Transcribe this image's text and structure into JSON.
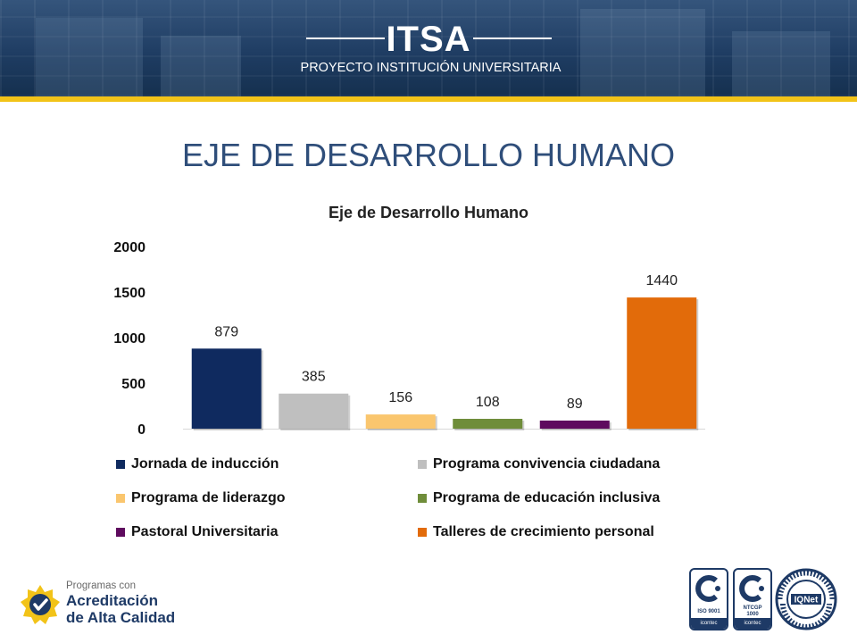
{
  "banner": {
    "title": "ITSA",
    "subtitle": "PROYECTO INSTITUCIÓN UNIVERSITARIA"
  },
  "page": {
    "heading": "EJE DE DESARROLLO HUMANO"
  },
  "chart_data": {
    "type": "bar",
    "title": "Eje de Desarrollo Humano",
    "xlabel": "",
    "ylabel": "",
    "ylim": [
      0,
      2000
    ],
    "yticks": [
      0,
      500,
      1000,
      1500,
      2000
    ],
    "grid": false,
    "legend_position": "bottom",
    "categories": [
      "Jornada de inducción",
      "Programa convivencia ciudadana",
      "Programa de liderazgo",
      "Programa de educación inclusiva",
      "Pastoral Universitaria",
      "Talleres de crecimiento personal"
    ],
    "values": [
      879,
      385,
      156,
      108,
      89,
      1440
    ],
    "colors": [
      "#0f2a5f",
      "#bfbfbf",
      "#fac66e",
      "#6f8d3a",
      "#5e0b5e",
      "#e26b0a"
    ]
  },
  "footer": {
    "accreditation_small": "Programas con",
    "accreditation_line1": "Acreditación",
    "accreditation_line2": "de Alta Calidad",
    "badge1_label": "ISO 9001",
    "badge2_label_line1": "NTCGP",
    "badge2_label_line2": "1000",
    "badge_footer": "icontec",
    "iqnet_text": "IQNet",
    "iqnet_ring": "CERTIFIED MANAGEMENT SYSTEM"
  },
  "icons": {
    "accreditation": "star-check-icon",
    "certification": "icontec-logo-icon",
    "iqnet": "iqnet-seal-icon"
  }
}
